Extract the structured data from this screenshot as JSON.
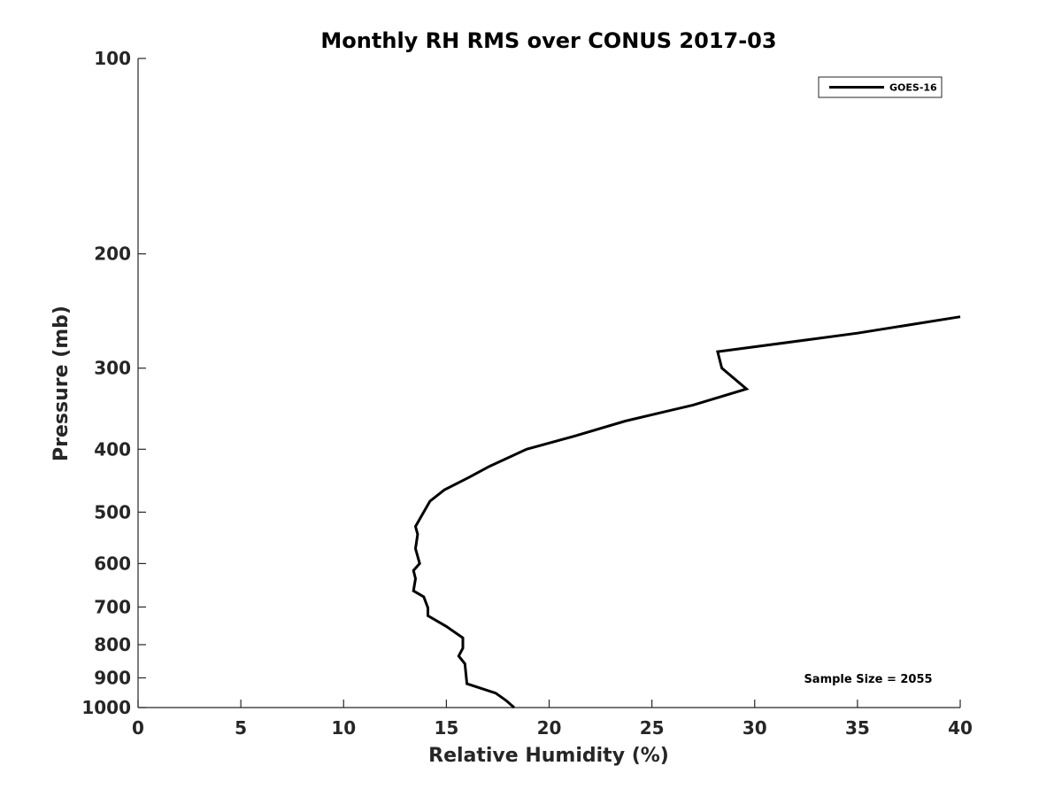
{
  "chart_data": {
    "type": "line",
    "title": "Monthly RH RMS over CONUS  2017-03",
    "xlabel": "Relative Humidity (%)",
    "ylabel": "Pressure (mb)",
    "xlim": [
      0,
      40
    ],
    "ylim": [
      100,
      1000
    ],
    "y_scale": "log",
    "y_reversed": true,
    "x_ticks": [
      "0",
      "5",
      "10",
      "15",
      "20",
      "25",
      "30",
      "35",
      "40"
    ],
    "y_ticks": [
      "100",
      "200",
      "300",
      "400",
      "500",
      "600",
      "700",
      "800",
      "900",
      "1000"
    ],
    "grid": false,
    "legend_position": "top-right",
    "series": [
      {
        "name": "GOES-16",
        "color": "#000000",
        "x": [
          40.0,
          35.0,
          28.2,
          28.4,
          29.6,
          27.0,
          23.7,
          21.2,
          18.9,
          17.1,
          16.1,
          14.9,
          14.2,
          13.5,
          13.6,
          13.5,
          13.7,
          13.4,
          13.5,
          13.4,
          13.9,
          14.1,
          14.1,
          15.0,
          15.8,
          15.8,
          15.6,
          15.9,
          16.0,
          17.4,
          17.9,
          18.3
        ],
        "y": [
          250,
          265,
          283,
          300,
          323,
          342,
          362,
          382,
          400,
          425,
          442,
          462,
          481,
          526,
          541,
          569,
          600,
          615,
          633,
          661,
          675,
          702,
          722,
          750,
          781,
          810,
          833,
          856,
          919,
          950,
          975,
          1000
        ]
      }
    ],
    "annotations": [
      {
        "text": "Sample Size = 2055",
        "position": "bottom-right"
      }
    ]
  }
}
